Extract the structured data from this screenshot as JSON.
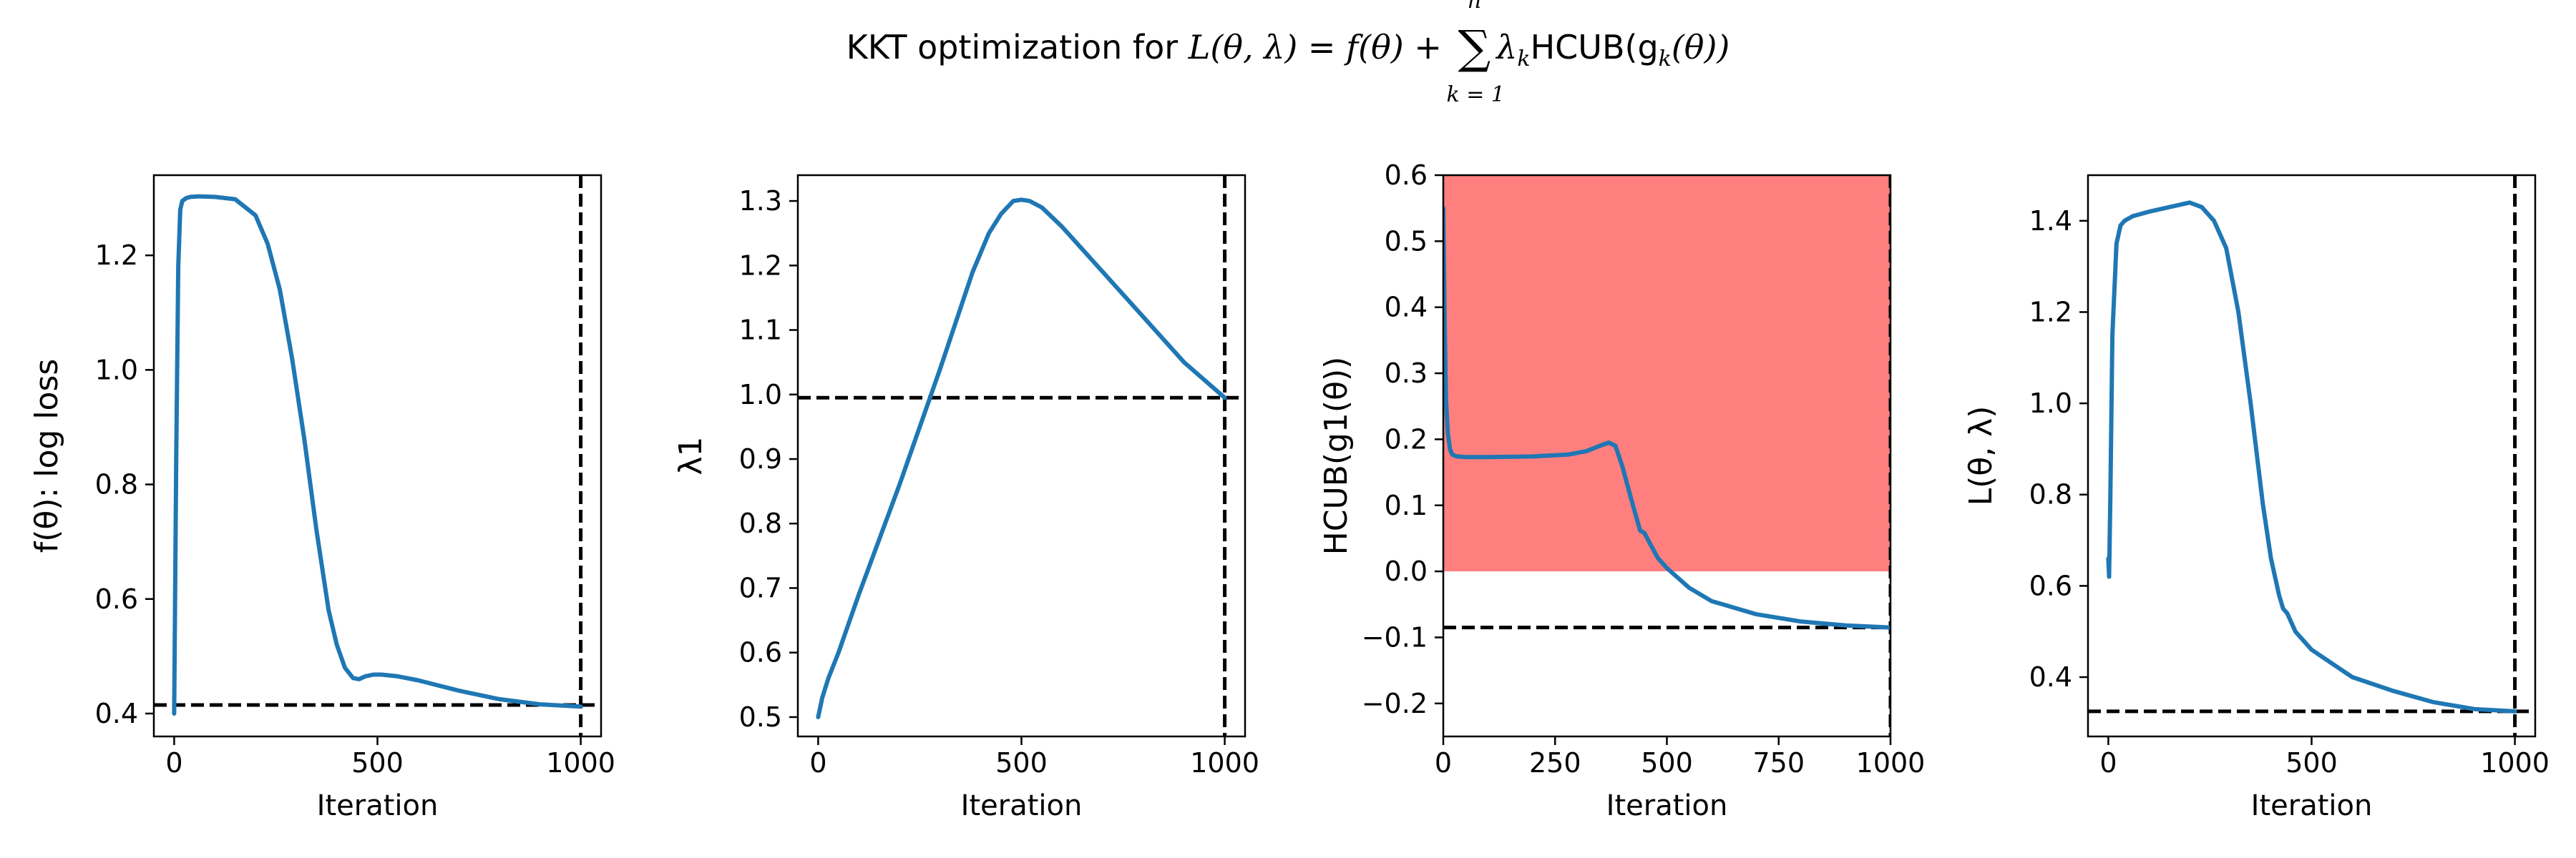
{
  "figure": {
    "title": "KKT optimization for L(θ, λ) = f(θ) + Σ_{k=1}^{n} λ_k HCUB(g_k(θ))",
    "title_parts": {
      "prefix": "KKT optimization for ",
      "lhs": "L(θ, λ)",
      "eq": " = ",
      "f": "f(θ)",
      "plus": " + ",
      "sum_sup": "n",
      "sum_sub": "k = 1",
      "sum_symbol": "∑",
      "term": "λ",
      "term_sub": "k",
      "term_rest": "HCUB(g",
      "term_sub2": "k",
      "term_end": "(θ))"
    }
  },
  "chart_data": [
    {
      "type": "line",
      "title": "",
      "xlabel": "Iteration",
      "ylabel": "f(θ): log loss",
      "xlim": [
        -50,
        1050
      ],
      "ylim": [
        0.36,
        1.34
      ],
      "xticks": [
        0,
        500,
        1000
      ],
      "yticks": [
        0.4,
        0.6,
        0.8,
        1.0,
        1.2
      ],
      "ytick_labels": [
        "0.4",
        "0.6",
        "0.8",
        "1.0",
        "1.2"
      ],
      "grid": false,
      "line_color": "#1f77b4",
      "series": [
        {
          "x": [
            0,
            5,
            10,
            15,
            20,
            30,
            40,
            60,
            100,
            150,
            200,
            230,
            260,
            290,
            320,
            350,
            380,
            400,
            420,
            440,
            455,
            470,
            490,
            510,
            550,
            600,
            700,
            800,
            900,
            1000
          ],
          "y": [
            0.4,
            0.85,
            1.18,
            1.28,
            1.295,
            1.3,
            1.302,
            1.303,
            1.302,
            1.298,
            1.27,
            1.22,
            1.14,
            1.02,
            0.88,
            0.72,
            0.58,
            0.52,
            0.48,
            0.462,
            0.46,
            0.465,
            0.468,
            0.468,
            0.465,
            0.458,
            0.44,
            0.425,
            0.416,
            0.412
          ]
        }
      ],
      "hline": 0.415,
      "vline": 1000
    },
    {
      "type": "line",
      "title": "",
      "xlabel": "Iteration",
      "ylabel": "λ1",
      "xlim": [
        -50,
        1050
      ],
      "ylim": [
        0.47,
        1.34
      ],
      "xticks": [
        0,
        500,
        1000
      ],
      "yticks": [
        0.5,
        0.6,
        0.7,
        0.8,
        0.9,
        1.0,
        1.1,
        1.2,
        1.3
      ],
      "ytick_labels": [
        "0.5",
        "0.6",
        "0.7",
        "0.8",
        "0.9",
        "1.0",
        "1.1",
        "1.2",
        "1.3"
      ],
      "grid": false,
      "line_color": "#1f77b4",
      "series": [
        {
          "x": [
            0,
            10,
            25,
            50,
            100,
            200,
            300,
            380,
            420,
            450,
            480,
            500,
            520,
            550,
            600,
            700,
            800,
            900,
            1000
          ],
          "y": [
            0.5,
            0.53,
            0.56,
            0.6,
            0.69,
            0.86,
            1.04,
            1.19,
            1.25,
            1.28,
            1.3,
            1.302,
            1.3,
            1.29,
            1.26,
            1.19,
            1.12,
            1.05,
            0.995
          ]
        }
      ],
      "hline": 0.995,
      "vline": 1000
    },
    {
      "type": "line",
      "title": "",
      "xlabel": "Iteration",
      "ylabel": "HCUB(g1(θ))",
      "xlim": [
        0,
        1000
      ],
      "ylim": [
        -0.25,
        0.6
      ],
      "xticks": [
        0,
        250,
        500,
        750,
        1000
      ],
      "yticks": [
        -0.2,
        -0.1,
        0.0,
        0.1,
        0.2,
        0.3,
        0.4,
        0.5,
        0.6
      ],
      "ytick_labels": [
        "−0.2",
        "−0.1",
        "0.0",
        "0.1",
        "0.2",
        "0.3",
        "0.4",
        "0.5",
        "0.6"
      ],
      "grid": false,
      "line_color": "#1f77b4",
      "infeasible_region": {
        "y0": 0.0,
        "y1": 0.6,
        "color": "#ff7f7f"
      },
      "series": [
        {
          "x": [
            0,
            3,
            6,
            10,
            15,
            20,
            30,
            50,
            100,
            200,
            280,
            320,
            350,
            370,
            385,
            400,
            420,
            440,
            450,
            460,
            480,
            500,
            550,
            600,
            700,
            800,
            900,
            1000
          ],
          "y": [
            0.55,
            0.38,
            0.26,
            0.21,
            0.185,
            0.177,
            0.174,
            0.173,
            0.173,
            0.174,
            0.177,
            0.182,
            0.19,
            0.195,
            0.19,
            0.16,
            0.11,
            0.062,
            0.058,
            0.045,
            0.02,
            0.005,
            -0.025,
            -0.045,
            -0.065,
            -0.076,
            -0.082,
            -0.085
          ]
        }
      ],
      "hline": -0.085,
      "vline": 1000
    },
    {
      "type": "line",
      "title": "",
      "xlabel": "Iteration",
      "ylabel": "L(θ, λ)",
      "xlim": [
        -50,
        1050
      ],
      "ylim": [
        0.27,
        1.5
      ],
      "xticks": [
        0,
        500,
        1000
      ],
      "yticks": [
        0.4,
        0.6,
        0.8,
        1.0,
        1.2,
        1.4
      ],
      "ytick_labels": [
        "0.4",
        "0.6",
        "0.8",
        "1.0",
        "1.2",
        "1.4"
      ],
      "grid": false,
      "line_color": "#1f77b4",
      "series": [
        {
          "x": [
            0,
            2,
            5,
            10,
            20,
            30,
            40,
            60,
            100,
            150,
            200,
            230,
            260,
            290,
            320,
            350,
            380,
            400,
            420,
            430,
            440,
            450,
            460,
            500,
            550,
            600,
            700,
            800,
            900,
            1000
          ],
          "y": [
            0.66,
            0.62,
            0.8,
            1.15,
            1.35,
            1.39,
            1.4,
            1.41,
            1.42,
            1.43,
            1.44,
            1.43,
            1.4,
            1.34,
            1.2,
            1.0,
            0.78,
            0.66,
            0.58,
            0.55,
            0.54,
            0.52,
            0.5,
            0.46,
            0.43,
            0.4,
            0.37,
            0.345,
            0.33,
            0.325
          ]
        }
      ],
      "hline": 0.325,
      "vline": 1000
    }
  ]
}
